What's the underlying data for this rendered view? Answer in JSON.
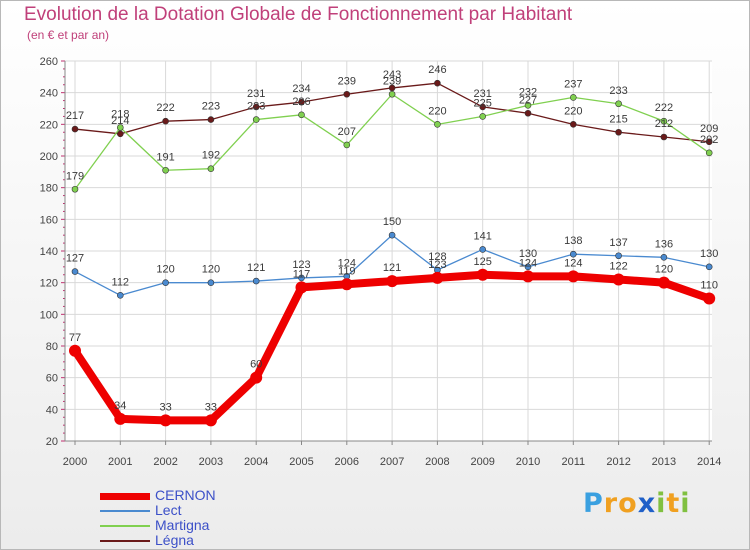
{
  "title": "Evolution de la Dotation Globale de Fonctionnement par Habitant",
  "subtitle": "(en € et par an)",
  "logo": {
    "text": "Proxiti",
    "letters": [
      "P",
      "r",
      "o",
      "x",
      "i",
      "t",
      "i"
    ],
    "colors": [
      "#3aa0e0",
      "#f0a020",
      "#f0a020",
      "#2060c8",
      "#80c040",
      "#f0a020",
      "#80c040"
    ]
  },
  "chart_data": {
    "type": "line",
    "title": "Evolution de la Dotation Globale de Fonctionnement par Habitant",
    "ylabel": "(en € et par an)",
    "xlabel": "",
    "x": [
      "2000",
      "2001",
      "2002",
      "2003",
      "2004",
      "2005",
      "2006",
      "2007",
      "2008",
      "2009",
      "2010",
      "2011",
      "2012",
      "2013",
      "2014"
    ],
    "ylim": [
      20,
      260
    ],
    "yticks": [
      20,
      40,
      60,
      80,
      100,
      120,
      140,
      160,
      180,
      200,
      220,
      240,
      260
    ],
    "grid": true,
    "series": [
      {
        "name": "CERNON",
        "color": "#ee0000",
        "values": [
          77,
          34,
          33,
          33,
          60,
          117,
          119,
          121,
          123,
          125,
          124,
          124,
          122,
          120,
          110
        ],
        "labels": [
          "77",
          "34",
          "33",
          "33",
          "60",
          "117",
          "119",
          "121",
          "123",
          "125",
          "124",
          "124",
          "122",
          "120",
          "110"
        ]
      },
      {
        "name": "Lect",
        "color": "#4a8ad0",
        "values": [
          127,
          112,
          120,
          120,
          121,
          123,
          124,
          150,
          128,
          141,
          130,
          138,
          137,
          136,
          130
        ],
        "labels": [
          "127",
          "112",
          "120",
          "120",
          "121",
          "123",
          "124",
          "150",
          "128",
          "141",
          "130",
          "138",
          "137",
          "136",
          "130"
        ]
      },
      {
        "name": "Martigna",
        "color": "#80d050",
        "values": [
          179,
          218,
          191,
          192,
          223,
          226,
          207,
          239,
          220,
          225,
          232,
          237,
          233,
          222,
          202
        ],
        "labels": [
          "179",
          "218",
          "191",
          "192",
          "223",
          "226",
          "207",
          "239",
          "220",
          "225",
          "232",
          "237",
          "233",
          "222",
          "202"
        ]
      },
      {
        "name": "Légna",
        "color": "#6a1a1a",
        "values": [
          217,
          214,
          222,
          223,
          231,
          234,
          239,
          243,
          246,
          231,
          227,
          220,
          215,
          212,
          209
        ],
        "labels": [
          "217",
          "214",
          "222",
          "223",
          "231",
          "234",
          "239",
          "243",
          "246",
          "231",
          "227",
          "220",
          "215",
          "212",
          "209"
        ]
      }
    ]
  }
}
